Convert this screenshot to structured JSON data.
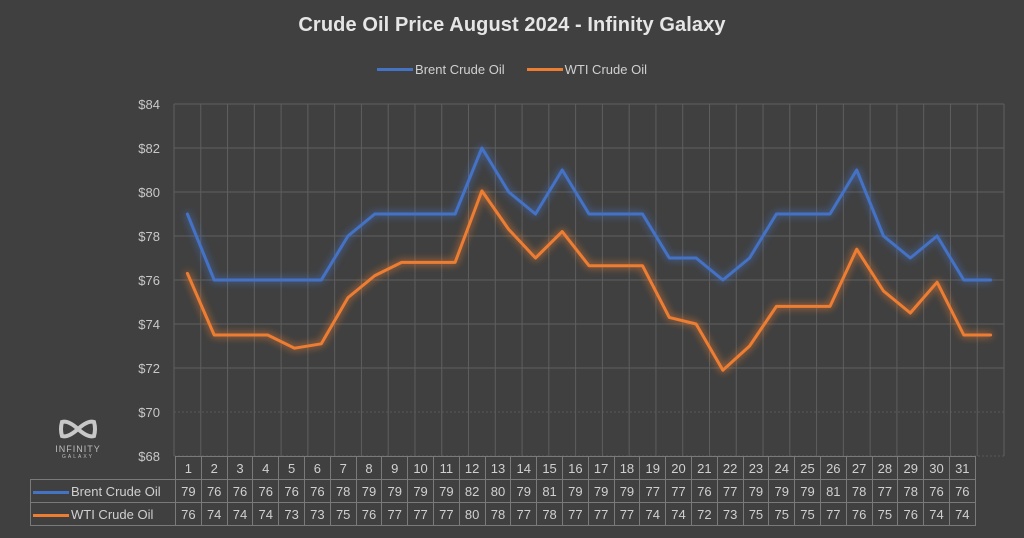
{
  "title": "Crude Oil Price August 2024 - Infinity Galaxy",
  "legend": [
    {
      "label": "Brent Crude Oil",
      "color": "#4472c4"
    },
    {
      "label": "WTI Crude Oil",
      "color": "#ed7d31"
    }
  ],
  "logo": {
    "word": "INFINITY",
    "sub": "GALAXY"
  },
  "colors": {
    "background": "#404040",
    "brent": "#4472c4",
    "wti": "#ed7d31",
    "grid": "#5f5f5f"
  },
  "chart_data": {
    "type": "line",
    "title": "Crude Oil Price August 2024 - Infinity Galaxy",
    "xlabel": "",
    "ylabel": "",
    "ylim": [
      68,
      84
    ],
    "y_ticks": [
      "$68",
      "$70",
      "$72",
      "$74",
      "$76",
      "$78",
      "$80",
      "$82",
      "$84"
    ],
    "grid": true,
    "legend_position": "top",
    "categories": [
      "1",
      "2",
      "3",
      "4",
      "5",
      "6",
      "7",
      "8",
      "9",
      "10",
      "11",
      "12",
      "13",
      "14",
      "15",
      "16",
      "17",
      "18",
      "19",
      "20",
      "21",
      "22",
      "23",
      "24",
      "25",
      "26",
      "27",
      "28",
      "29",
      "30",
      "31"
    ],
    "series": [
      {
        "name": "Brent Crude Oil",
        "color": "#4472c4",
        "values": [
          79,
          76,
          76,
          76,
          76,
          76,
          78,
          79,
          79,
          79,
          79,
          82,
          80,
          79,
          81,
          79,
          79,
          79,
          77,
          77,
          76,
          77,
          79,
          79,
          79,
          81,
          78,
          77,
          78,
          76,
          76
        ],
        "table_values": [
          79,
          76,
          76,
          76,
          76,
          76,
          78,
          79,
          79,
          79,
          79,
          82,
          80,
          79,
          81,
          79,
          79,
          79,
          77,
          77,
          76,
          77,
          79,
          79,
          79,
          81,
          78,
          77,
          78,
          76,
          76
        ]
      },
      {
        "name": "WTI Crude Oil",
        "color": "#ed7d31",
        "values": [
          76.3,
          73.5,
          73.5,
          73.5,
          72.9,
          73.1,
          75.2,
          76.2,
          76.8,
          76.8,
          76.8,
          80.05,
          78.3,
          77.0,
          78.2,
          76.65,
          76.65,
          76.65,
          74.3,
          74.0,
          71.9,
          73.0,
          74.8,
          74.8,
          74.8,
          77.4,
          75.5,
          74.5,
          75.9,
          73.5,
          73.5
        ],
        "table_values": [
          76,
          74,
          74,
          74,
          73,
          73,
          75,
          76,
          77,
          77,
          77,
          80,
          78,
          77,
          78,
          77,
          77,
          77,
          74,
          74,
          72,
          73,
          75,
          75,
          75,
          77,
          76,
          75,
          76,
          74,
          74
        ]
      }
    ],
    "data_table": true
  }
}
